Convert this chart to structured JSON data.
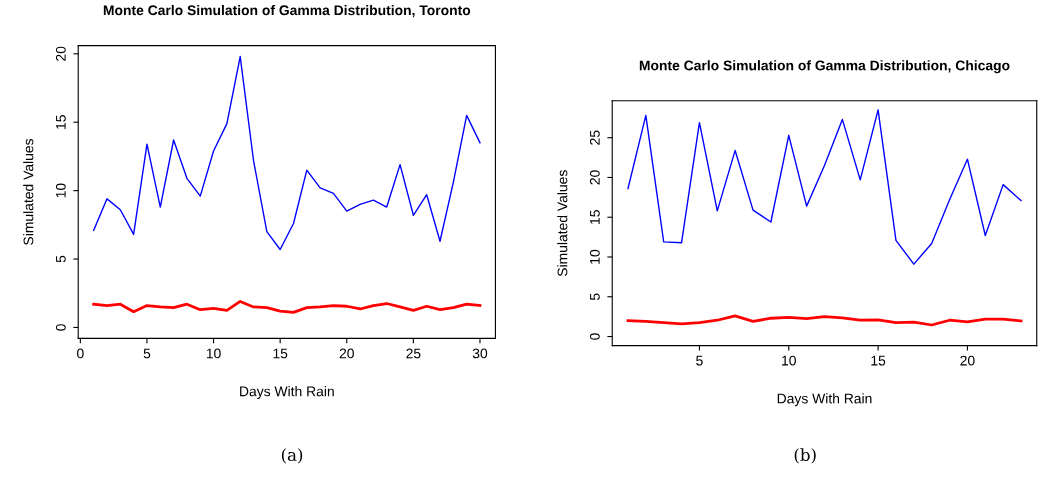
{
  "chart_data": [
    {
      "type": "line",
      "title": "Monte Carlo Simulation of Gamma Distribution, Toronto",
      "xlabel": "Days With Rain",
      "ylabel": "Simulated Values",
      "annotations": [
        "(a)"
      ],
      "x": [
        1,
        2,
        3,
        4,
        5,
        6,
        7,
        8,
        9,
        10,
        11,
        12,
        13,
        14,
        15,
        16,
        17,
        18,
        19,
        20,
        21,
        22,
        23,
        24,
        25,
        26,
        27,
        28,
        29,
        30
      ],
      "series": [
        {
          "color": "#0000ff",
          "values": [
            7.1,
            9.4,
            8.6,
            6.8,
            13.4,
            8.8,
            13.7,
            10.9,
            9.6,
            12.9,
            14.9,
            19.8,
            12.2,
            7.0,
            5.7,
            7.6,
            11.5,
            10.2,
            9.8,
            8.5,
            9.0,
            9.3,
            8.8,
            11.9,
            8.2,
            9.7,
            6.3,
            10.6,
            15.5,
            13.5
          ]
        },
        {
          "color": "#ff0000",
          "values": [
            1.7,
            1.6,
            1.7,
            1.15,
            1.6,
            1.5,
            1.45,
            1.7,
            1.3,
            1.4,
            1.25,
            1.9,
            1.5,
            1.45,
            1.2,
            1.1,
            1.45,
            1.5,
            1.6,
            1.55,
            1.35,
            1.6,
            1.75,
            1.5,
            1.25,
            1.55,
            1.3,
            1.45,
            1.7,
            1.6
          ]
        }
      ],
      "xlim": [
        -0.16,
        31.16
      ],
      "ylim": [
        -0.8,
        20.6
      ],
      "xticks": [
        0,
        5,
        10,
        15,
        20,
        25,
        30
      ],
      "yticks": [
        0,
        5,
        10,
        15,
        20
      ],
      "grid": false,
      "legend": false,
      "marker": "none",
      "line_style": "solid"
    },
    {
      "type": "line",
      "title": "Monte Carlo Simulation of Gamma Distribution, Chicago",
      "xlabel": "Days With Rain",
      "ylabel": "Simulated Values",
      "annotations": [
        "(b)"
      ],
      "x": [
        1,
        2,
        3,
        4,
        5,
        6,
        7,
        8,
        9,
        10,
        11,
        12,
        13,
        14,
        15,
        16,
        17,
        18,
        19,
        20,
        21,
        22,
        23
      ],
      "series": [
        {
          "color": "#0000ff",
          "values": [
            18.6,
            27.8,
            11.9,
            11.8,
            26.9,
            15.8,
            23.4,
            15.9,
            14.4,
            25.3,
            16.4,
            21.5,
            27.3,
            19.7,
            28.5,
            12.1,
            9.1,
            11.7,
            17.2,
            22.3,
            12.7,
            19.1,
            17.1
          ]
        },
        {
          "color": "#ff0000",
          "values": [
            2.0,
            1.9,
            1.75,
            1.6,
            1.75,
            2.05,
            2.6,
            1.9,
            2.3,
            2.4,
            2.25,
            2.5,
            2.35,
            2.05,
            2.1,
            1.75,
            1.8,
            1.45,
            2.05,
            1.85,
            2.2,
            2.2,
            1.95
          ]
        }
      ],
      "xlim": [
        0.12,
        23.88
      ],
      "ylim": [
        -1.14,
        29.64
      ],
      "xticks": [
        5,
        10,
        15,
        20
      ],
      "yticks": [
        0,
        5,
        10,
        15,
        20,
        25
      ],
      "grid": false,
      "legend": false,
      "marker": "none",
      "line_style": "solid"
    }
  ]
}
